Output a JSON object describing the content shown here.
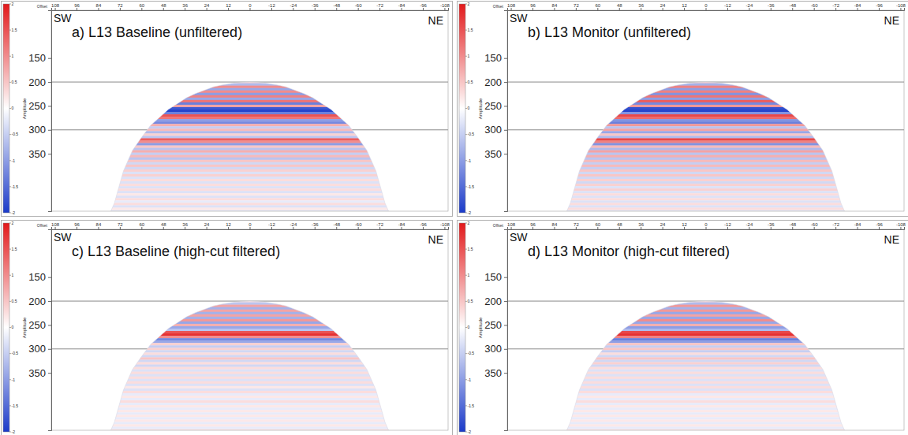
{
  "chart_data": [
    {
      "type": "heatmap",
      "title": "a) L13 Baseline (unfiltered)",
      "left_label": "SW",
      "right_label": "NE",
      "x_label": "Offset",
      "xlim": [
        110,
        -110
      ],
      "xticks": [
        108,
        96,
        84,
        72,
        60,
        48,
        36,
        24,
        12,
        0,
        -12,
        -24,
        -36,
        -48,
        -60,
        -72,
        -84,
        -96,
        -108
      ],
      "ylim": [
        50,
        470
      ],
      "yticks": [
        150,
        200,
        250,
        300,
        350
      ],
      "reference_lines": [
        200,
        300
      ],
      "colorbar_label": "Amplitude",
      "colorbar_range": [
        -2,
        2
      ],
      "colorbar_ticks": [
        -2,
        -1.5,
        -1,
        -0.5,
        0,
        0.5,
        1,
        1.5,
        2
      ],
      "times": [
        200,
        205,
        210,
        215,
        220,
        225,
        230,
        235,
        240,
        245,
        250,
        255,
        260,
        265,
        270,
        275,
        280,
        285,
        290,
        295,
        300,
        305,
        310,
        315,
        320,
        325,
        330,
        335,
        340,
        345,
        350,
        355,
        360,
        365,
        370,
        375,
        380,
        385,
        390,
        395,
        400,
        405,
        410,
        415,
        420,
        425,
        430,
        435,
        440,
        445,
        450,
        455,
        460,
        465,
        470
      ],
      "amplitudes": [
        0.4,
        -0.7,
        1.0,
        -0.9,
        1.0,
        -1.0,
        1.1,
        -0.9,
        1.2,
        -1.3,
        0.8,
        -1.7,
        -1.9,
        -1.3,
        1.5,
        1.2,
        -1.0,
        -1.2,
        0.7,
        -0.5,
        0.6,
        -0.7,
        0.4,
        -0.6,
        1.4,
        1.0,
        -1.0,
        0.5,
        -0.6,
        0.7,
        -0.5,
        0.6,
        -0.6,
        0.5,
        -0.4,
        0.5,
        -0.4,
        0.4,
        -0.3,
        0.4,
        -0.3,
        0.3,
        -0.3,
        0.3,
        -0.3,
        0.3,
        -0.3,
        0.2,
        -0.3,
        0.3,
        -0.2,
        0.3,
        -0.3,
        0.2,
        -0.2
      ],
      "fan_offsets": [
        -77,
        -75,
        -70,
        -65,
        -60,
        -55,
        -50,
        -45,
        -40,
        -35,
        -30,
        -25,
        -20,
        -15,
        -10,
        -5,
        0,
        5,
        10,
        15,
        20,
        25,
        30,
        35,
        40,
        45,
        50,
        55,
        60,
        65,
        70,
        75,
        77
      ],
      "fan_start_times": [
        470,
        453,
        386,
        343,
        316,
        291,
        274,
        257,
        245,
        233,
        224,
        217,
        210,
        206,
        203,
        201,
        200,
        201,
        203,
        206,
        210,
        217,
        224,
        233,
        245,
        257,
        274,
        291,
        316,
        343,
        386,
        453,
        470
      ]
    },
    {
      "type": "heatmap",
      "title": "b) L13 Monitor (unfiltered)",
      "left_label": "SW",
      "right_label": "NE",
      "x_label": "Offset",
      "xlim": [
        110,
        -110
      ],
      "xticks": [
        108,
        96,
        84,
        72,
        60,
        48,
        36,
        24,
        12,
        0,
        -12,
        -24,
        -36,
        -48,
        -60,
        -72,
        -84,
        -96,
        -108
      ],
      "ylim": [
        50,
        470
      ],
      "yticks": [
        150,
        200,
        250,
        300,
        350
      ],
      "reference_lines": [
        200,
        300
      ],
      "colorbar_label": "Amplitude",
      "colorbar_range": [
        -2,
        2
      ],
      "colorbar_ticks": [
        -2,
        -1.5,
        -1,
        -0.5,
        0,
        0.5,
        1,
        1.5,
        2
      ],
      "times": [
        200,
        205,
        210,
        215,
        220,
        225,
        230,
        235,
        240,
        245,
        250,
        255,
        260,
        265,
        270,
        275,
        280,
        285,
        290,
        295,
        300,
        305,
        310,
        315,
        320,
        325,
        330,
        335,
        340,
        345,
        350,
        355,
        360,
        365,
        370,
        375,
        380,
        385,
        390,
        395,
        400,
        405,
        410,
        415,
        420,
        425,
        430,
        435,
        440,
        445,
        450,
        455,
        460,
        465,
        470
      ],
      "amplitudes": [
        0.5,
        -0.8,
        1.1,
        -1.0,
        1.1,
        -1.1,
        1.2,
        -1.0,
        1.4,
        -1.2,
        0.9,
        -1.8,
        -1.9,
        -1.1,
        1.6,
        1.3,
        -1.1,
        -1.3,
        0.9,
        -0.6,
        0.8,
        -0.9,
        0.5,
        -0.7,
        1.6,
        1.1,
        -1.1,
        0.6,
        -0.7,
        0.8,
        -0.6,
        0.7,
        -0.6,
        0.6,
        -0.5,
        0.6,
        -0.5,
        0.5,
        -0.4,
        0.5,
        -0.4,
        0.4,
        -0.4,
        0.4,
        -0.3,
        0.4,
        -0.3,
        0.3,
        -0.3,
        0.3,
        -0.3,
        0.3,
        -0.3,
        0.3,
        -0.2
      ],
      "fan_offsets": [
        -77,
        -75,
        -70,
        -65,
        -60,
        -55,
        -50,
        -45,
        -40,
        -35,
        -30,
        -25,
        -20,
        -15,
        -10,
        -5,
        0,
        5,
        10,
        15,
        20,
        25,
        30,
        35,
        40,
        45,
        50,
        55,
        60,
        65,
        70,
        75,
        77
      ],
      "fan_start_times": [
        470,
        453,
        386,
        343,
        316,
        291,
        274,
        257,
        245,
        233,
        224,
        217,
        210,
        206,
        203,
        201,
        200,
        201,
        203,
        206,
        210,
        217,
        224,
        233,
        245,
        257,
        274,
        291,
        316,
        343,
        386,
        453,
        470
      ]
    },
    {
      "type": "heatmap",
      "title": "c) L13 Baseline (high-cut filtered)",
      "left_label": "SW",
      "right_label": "NE",
      "x_label": "Offset",
      "xlim": [
        110,
        -110
      ],
      "xticks": [
        108,
        96,
        84,
        72,
        60,
        48,
        36,
        24,
        12,
        0,
        -12,
        -24,
        -36,
        -48,
        -60,
        -72,
        -84,
        -96,
        -108
      ],
      "ylim": [
        50,
        470
      ],
      "yticks": [
        150,
        200,
        250,
        300,
        350
      ],
      "reference_lines": [
        200,
        300
      ],
      "colorbar_label": "Amplitude",
      "colorbar_range": [
        -2,
        2
      ],
      "colorbar_ticks": [
        -2,
        -1.5,
        -1,
        -0.5,
        0,
        0.5,
        1,
        1.5,
        2
      ],
      "times": [
        200,
        205,
        210,
        215,
        220,
        225,
        230,
        235,
        240,
        245,
        250,
        255,
        260,
        265,
        270,
        275,
        280,
        285,
        290,
        295,
        300,
        305,
        310,
        315,
        320,
        325,
        330,
        335,
        340,
        345,
        350,
        355,
        360,
        365,
        370,
        375,
        380,
        385,
        390,
        395,
        400,
        405,
        410,
        415,
        420,
        425,
        430,
        435,
        440,
        445,
        450,
        455,
        460,
        465,
        470
      ],
      "amplitudes": [
        0.3,
        -0.6,
        0.8,
        -0.8,
        0.8,
        -0.8,
        0.8,
        -0.8,
        0.9,
        -0.9,
        0.7,
        -0.9,
        -0.6,
        1.5,
        1.8,
        1.0,
        -1.2,
        -0.9,
        0.4,
        -0.5,
        0.4,
        -0.4,
        0.3,
        -0.4,
        0.5,
        -0.4,
        0.3,
        -0.4,
        0.3,
        -0.3,
        0.3,
        -0.3,
        0.3,
        -0.3,
        0.3,
        -0.3,
        0.2,
        -0.3,
        0.3,
        -0.2,
        0.2,
        -0.2,
        0.3,
        -0.2,
        0.2,
        -0.2,
        0.2,
        -0.2,
        0.2,
        -0.2,
        0.2,
        -0.2,
        0.2,
        -0.2,
        0.2
      ],
      "fan_offsets": [
        -77,
        -75,
        -70,
        -65,
        -60,
        -55,
        -50,
        -45,
        -40,
        -35,
        -30,
        -25,
        -20,
        -15,
        -10,
        -5,
        0,
        5,
        10,
        15,
        20,
        25,
        30,
        35,
        40,
        45,
        50,
        55,
        60,
        65,
        70,
        75,
        77
      ],
      "fan_start_times": [
        470,
        453,
        386,
        343,
        316,
        291,
        274,
        257,
        245,
        233,
        224,
        217,
        210,
        206,
        203,
        201,
        200,
        201,
        203,
        206,
        210,
        217,
        224,
        233,
        245,
        257,
        274,
        291,
        316,
        343,
        386,
        453,
        470
      ]
    },
    {
      "type": "heatmap",
      "title": "d) L13 Monitor (high-cut filtered)",
      "left_label": "SW",
      "right_label": "NE",
      "x_label": "Offset",
      "xlim": [
        110,
        -110
      ],
      "xticks": [
        108,
        96,
        84,
        72,
        60,
        48,
        36,
        24,
        12,
        0,
        -12,
        -24,
        -36,
        -48,
        -60,
        -72,
        -84,
        -96,
        -108
      ],
      "ylim": [
        50,
        470
      ],
      "yticks": [
        150,
        200,
        250,
        300,
        350
      ],
      "reference_lines": [
        200,
        300
      ],
      "colorbar_label": "Amplitude",
      "colorbar_range": [
        -2,
        2
      ],
      "colorbar_ticks": [
        -2,
        -1.5,
        -1,
        -0.5,
        0,
        0.5,
        1,
        1.5,
        2
      ],
      "times": [
        200,
        205,
        210,
        215,
        220,
        225,
        230,
        235,
        240,
        245,
        250,
        255,
        260,
        265,
        270,
        275,
        280,
        285,
        290,
        295,
        300,
        305,
        310,
        315,
        320,
        325,
        330,
        335,
        340,
        345,
        350,
        355,
        360,
        365,
        370,
        375,
        380,
        385,
        390,
        395,
        400,
        405,
        410,
        415,
        420,
        425,
        430,
        435,
        440,
        445,
        450,
        455,
        460,
        465,
        470
      ],
      "amplitudes": [
        0.4,
        -0.7,
        0.9,
        -0.8,
        0.9,
        -0.9,
        0.8,
        -0.9,
        1.0,
        -0.9,
        0.7,
        -1.0,
        -0.7,
        1.6,
        1.8,
        1.1,
        -1.3,
        -1.0,
        0.5,
        -0.5,
        0.5,
        -0.5,
        0.3,
        -0.4,
        0.5,
        -0.4,
        0.4,
        -0.4,
        0.3,
        -0.3,
        0.3,
        -0.3,
        0.3,
        -0.3,
        0.3,
        -0.3,
        0.3,
        -0.3,
        0.3,
        -0.2,
        0.2,
        -0.2,
        0.3,
        -0.2,
        0.2,
        -0.2,
        0.2,
        -0.2,
        0.2,
        -0.2,
        0.2,
        -0.2,
        0.2,
        -0.2,
        0.2
      ],
      "fan_offsets": [
        -77,
        -75,
        -70,
        -65,
        -60,
        -55,
        -50,
        -45,
        -40,
        -35,
        -30,
        -25,
        -20,
        -15,
        -10,
        -5,
        0,
        5,
        10,
        15,
        20,
        25,
        30,
        35,
        40,
        45,
        50,
        55,
        60,
        65,
        70,
        75,
        77
      ],
      "fan_start_times": [
        470,
        453,
        386,
        343,
        316,
        291,
        274,
        257,
        245,
        233,
        224,
        217,
        210,
        206,
        203,
        201,
        200,
        201,
        203,
        206,
        210,
        217,
        224,
        233,
        245,
        257,
        274,
        291,
        316,
        343,
        386,
        453,
        470
      ]
    }
  ]
}
